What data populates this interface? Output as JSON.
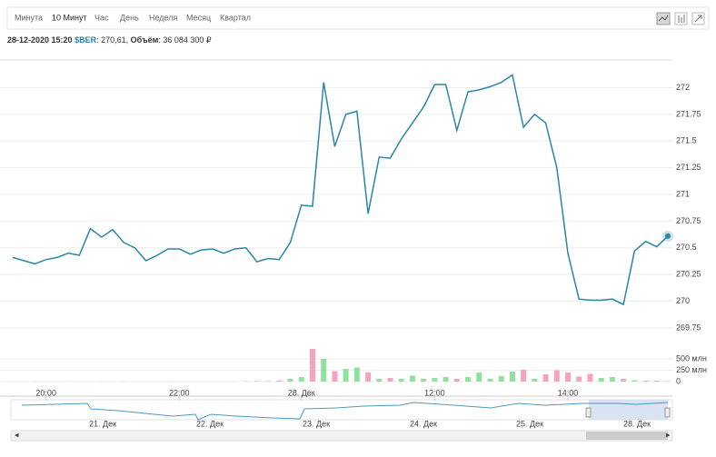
{
  "chart_data": {
    "type": "line",
    "tabs": [
      "Минута",
      "10 Минут",
      "Час",
      "День",
      "Неделя",
      "Месяц",
      "Квартал"
    ],
    "selected_tab": 1,
    "info": {
      "date": "28-12-2020 15:20",
      "ticker": "$BER",
      "price": ": 270,61,",
      "volume_label": "Объём",
      "volume": ": 36 084 300 ₽"
    },
    "categories": [
      null,
      null,
      null,
      "20:00",
      null,
      null,
      null,
      null,
      null,
      null,
      null,
      null,
      null,
      null,
      null,
      "22:00",
      null,
      null,
      null,
      null,
      null,
      null,
      null,
      null,
      null,
      null,
      "28. Дек",
      null,
      null,
      null,
      null,
      null,
      null,
      null,
      null,
      null,
      null,
      null,
      "12:00",
      null,
      null,
      null,
      null,
      null,
      null,
      null,
      null,
      null,
      null,
      null,
      "14:00",
      null,
      null,
      null,
      null,
      null,
      null,
      null,
      null,
      null
    ],
    "series": [
      {
        "color": "#2a86a8",
        "values": [
          270.41,
          270.38,
          270.35,
          270.39,
          270.41,
          270.45,
          270.43,
          270.68,
          270.6,
          270.67,
          270.55,
          270.5,
          270.38,
          270.43,
          270.49,
          270.49,
          270.44,
          270.48,
          270.49,
          270.45,
          270.49,
          270.5,
          270.37,
          270.4,
          270.39,
          270.55,
          270.9,
          270.89,
          272.05,
          271.45,
          271.75,
          271.78,
          270.82,
          271.35,
          271.34,
          271.52,
          271.67,
          271.82,
          272.03,
          272.03,
          271.6,
          271.96,
          271.98,
          272.01,
          272.05,
          272.12,
          271.63,
          271.75,
          271.67,
          271.25,
          270.45,
          270.02,
          270.01,
          270.01,
          270.02,
          269.97,
          270.47,
          270.56,
          270.51,
          270.61
        ]
      }
    ],
    "ylim": [
      269.63,
      272.26
    ],
    "yticks": [
      269.75,
      270,
      270.25,
      270.5,
      270.75,
      271,
      271.25,
      271.5,
      271.75,
      272
    ],
    "grid": true,
    "volume": {
      "up_color": "#8ee39a",
      "down_color": "#f5a3bf",
      "values": [
        3,
        2,
        4,
        3,
        2,
        5,
        3,
        4,
        3,
        2,
        4,
        3,
        2,
        3,
        5,
        4,
        3,
        2,
        4,
        3,
        5,
        8,
        10,
        12,
        25,
        60,
        100,
        720,
        500,
        230,
        280,
        310,
        200,
        60,
        80,
        60,
        130,
        60,
        80,
        100,
        60,
        100,
        200,
        60,
        120,
        220,
        260,
        60,
        160,
        250,
        200,
        110,
        170,
        80,
        100,
        60,
        30,
        20,
        20,
        10
      ],
      "ylim": [
        0,
        740
      ],
      "yticks": [
        {
          "value": 500,
          "label": "500 млн"
        },
        {
          "value": 250,
          "label": "250 млн"
        },
        0
      ]
    },
    "navigator_labels": [
      "21. Дек",
      "22. Дек",
      "23. Дек",
      "24. Дек",
      "25. Дек",
      "28. Дек"
    ]
  }
}
